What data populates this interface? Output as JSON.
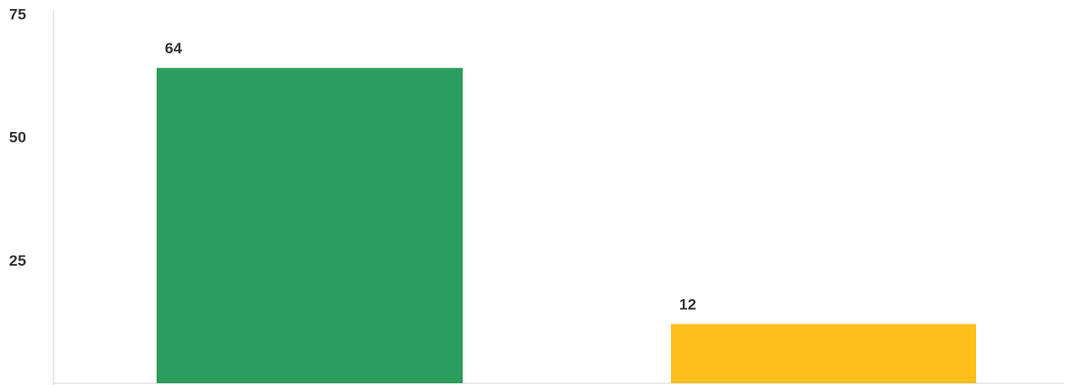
{
  "chart_data": {
    "type": "bar",
    "categories": [
      "",
      ""
    ],
    "values": [
      64,
      12
    ],
    "data_labels": [
      "64",
      "12"
    ],
    "colors": [
      "#2a9d5c",
      "#ffbf1a"
    ],
    "yticks": [
      {
        "value": 25,
        "label": "25"
      },
      {
        "value": 50,
        "label": "50"
      },
      {
        "value": 75,
        "label": "75"
      }
    ],
    "title": "",
    "xlabel": "",
    "ylabel": "",
    "grid": false,
    "legend": "none"
  }
}
